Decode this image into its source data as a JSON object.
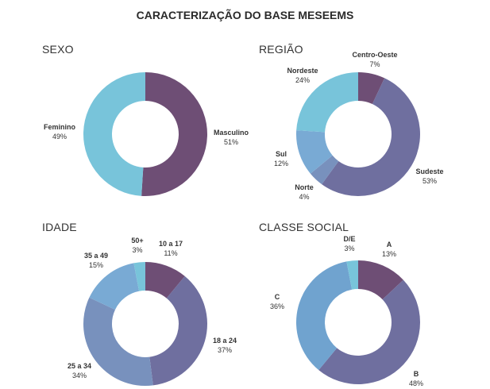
{
  "title": "CARACTERIZAÇÃO DO BASE MESEEMS",
  "chart_data": [
    {
      "type": "pie",
      "title": "SEXO",
      "categories": [
        "Masculino",
        "Feminino"
      ],
      "values": [
        51,
        49
      ],
      "labels": [
        "51%",
        "49%"
      ],
      "colors": [
        "#6e4e75",
        "#78c4da"
      ]
    },
    {
      "type": "pie",
      "title": "REGIÃO",
      "categories": [
        "Centro-Oeste",
        "Sudeste",
        "Norte",
        "Sul",
        "Nordeste"
      ],
      "values": [
        7,
        53,
        4,
        12,
        24
      ],
      "labels": [
        "7%",
        "53%",
        "4%",
        "12%",
        "24%"
      ],
      "colors": [
        "#6e4e75",
        "#6f6f9f",
        "#7891bd",
        "#79aad4",
        "#78c4da"
      ]
    },
    {
      "type": "pie",
      "title": "IDADE",
      "categories": [
        "10 a 17",
        "18 a 24",
        "25 a 34",
        "35 a 49",
        "50+"
      ],
      "values": [
        11,
        37,
        34,
        15,
        3
      ],
      "labels": [
        "11%",
        "37%",
        "34%",
        "15%",
        "3%"
      ],
      "colors": [
        "#6e4e75",
        "#6f6f9f",
        "#7891bd",
        "#79aad4",
        "#78c4da"
      ]
    },
    {
      "type": "pie",
      "title": "CLASSE SOCIAL",
      "categories": [
        "A",
        "B",
        "C",
        "D/E"
      ],
      "values": [
        13,
        48,
        36,
        3
      ],
      "labels": [
        "13%",
        "48%",
        "36%",
        "3%"
      ],
      "colors": [
        "#6e4e75",
        "#6f6f9f",
        "#70a3cf",
        "#78c4da"
      ]
    }
  ]
}
